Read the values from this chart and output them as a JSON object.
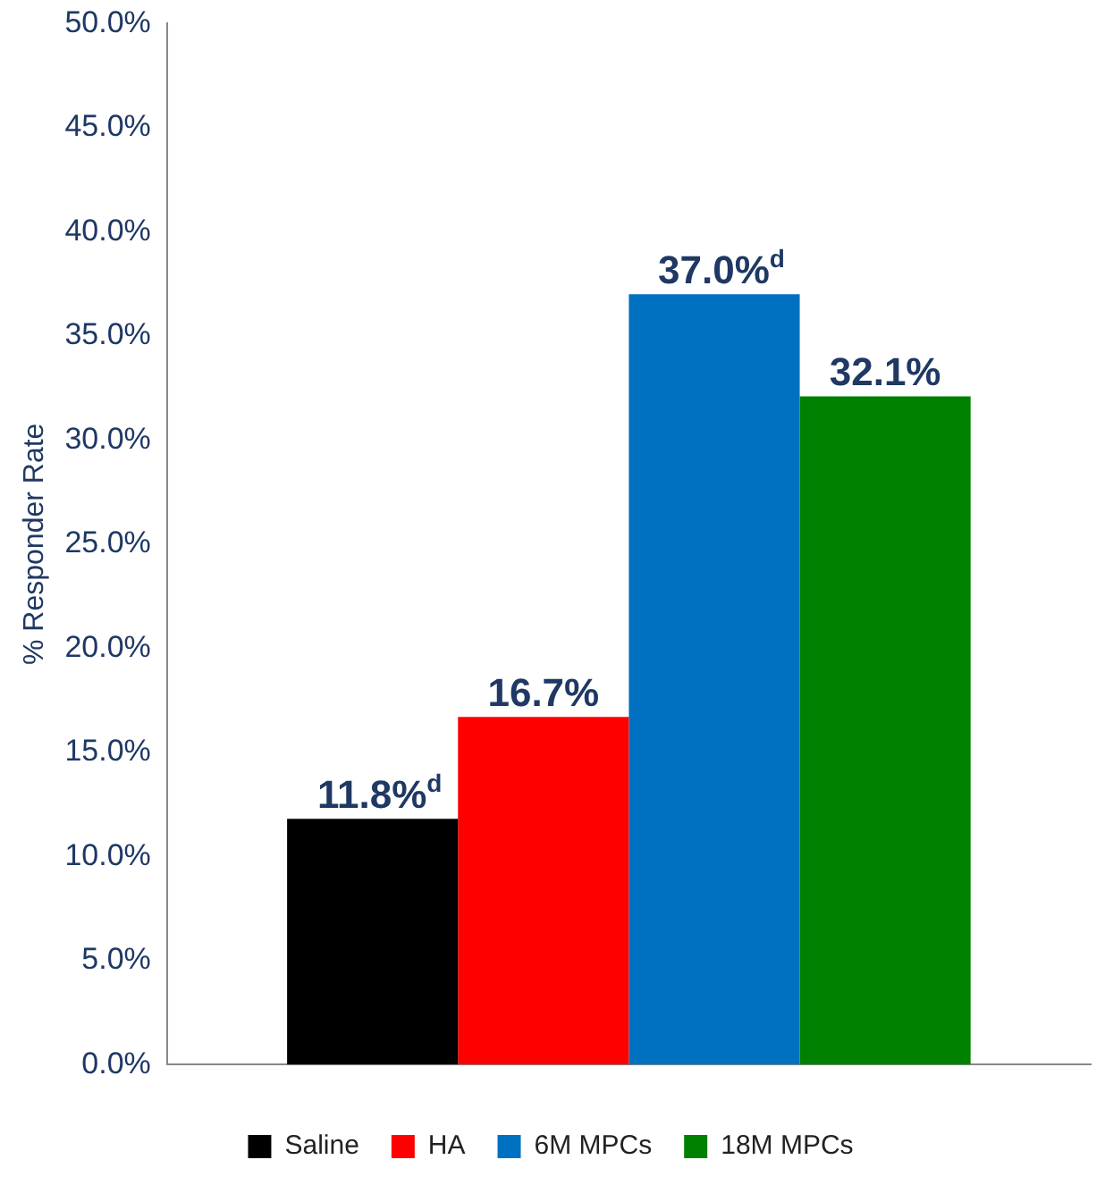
{
  "chart_data": {
    "type": "bar",
    "ylabel": "% Responder Rate",
    "categories": [
      null
    ],
    "series": [
      {
        "name": "Saline",
        "color": "#000000",
        "values": [
          11.8
        ],
        "value_labels": [
          "11.8%$^{d}$"
        ]
      },
      {
        "name": "HA",
        "color": "#ff0000",
        "values": [
          16.7
        ],
        "value_labels": [
          "16.7%"
        ]
      },
      {
        "name": "6M MPCs",
        "color": "#0070c0",
        "values": [
          37.0
        ],
        "value_labels": [
          "37.0%$^{d}$"
        ]
      },
      {
        "name": "18M MPCs",
        "color": "#008000",
        "values": [
          32.1
        ],
        "value_labels": [
          "32.1%"
        ]
      }
    ],
    "ylim": [
      0,
      50
    ],
    "yticks": [
      {
        "value": 0,
        "label": "0.0%"
      },
      {
        "value": 5,
        "label": "5.0%"
      },
      {
        "value": 10,
        "label": "10.0%"
      },
      {
        "value": 15,
        "label": "15.0%"
      },
      {
        "value": 20,
        "label": "20.0%"
      },
      {
        "value": 25,
        "label": "25.0%"
      },
      {
        "value": 30,
        "label": "30.0%"
      },
      {
        "value": 35,
        "label": "35.0%"
      },
      {
        "value": 40,
        "label": "40.0%"
      },
      {
        "value": 45,
        "label": "45.0%"
      },
      {
        "value": 50,
        "label": "50.0%"
      }
    ],
    "grid": false,
    "legend": "bottom"
  }
}
